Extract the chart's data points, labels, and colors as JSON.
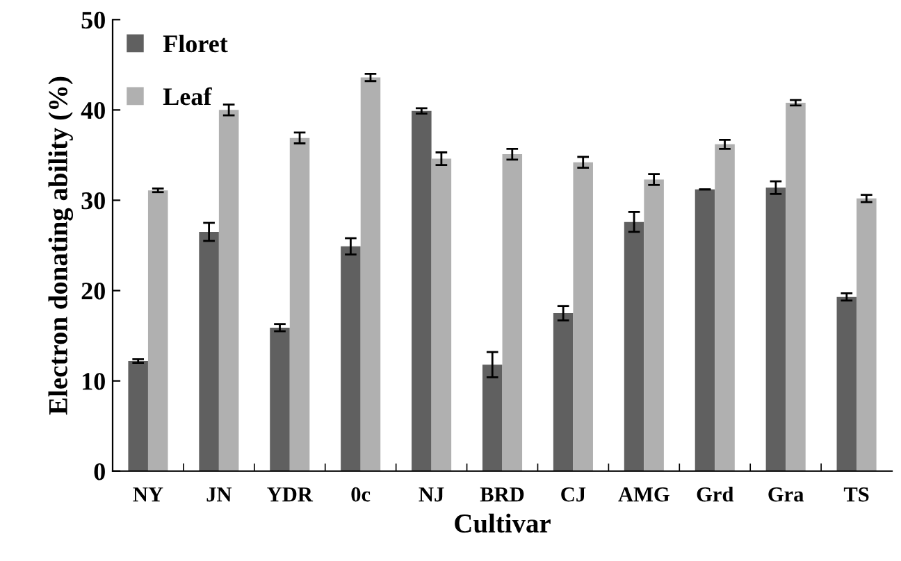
{
  "chart_data": {
    "type": "bar",
    "xlabel": "Cultivar",
    "ylabel": "Electron donating ability (%)",
    "categories": [
      "NY",
      "JN",
      "YDR",
      "0c",
      "NJ",
      "BRD",
      "CJ",
      "AMG",
      "Grd",
      "Gra",
      "TS"
    ],
    "series": [
      {
        "name": "Floret",
        "color": "#606060",
        "values": [
          12.2,
          26.5,
          15.9,
          24.9,
          39.9,
          11.8,
          17.5,
          27.6,
          31.2,
          31.4,
          19.3
        ],
        "errors": [
          0.2,
          1.0,
          0.4,
          0.9,
          0.3,
          1.4,
          0.8,
          1.1,
          0,
          0.7,
          0.4
        ]
      },
      {
        "name": "Leaf",
        "color": "#b0b0b0",
        "values": [
          31.1,
          40.0,
          36.9,
          43.6,
          34.6,
          35.1,
          34.2,
          32.3,
          36.2,
          40.8,
          30.2
        ],
        "errors": [
          0.2,
          0.6,
          0.6,
          0.4,
          0.7,
          0.6,
          0.6,
          0.6,
          0.5,
          0.3,
          0.4
        ]
      }
    ],
    "ylim": [
      0,
      50
    ],
    "yticks": [
      0,
      10,
      20,
      30,
      40,
      50
    ],
    "grid": false,
    "legend": "top left"
  }
}
